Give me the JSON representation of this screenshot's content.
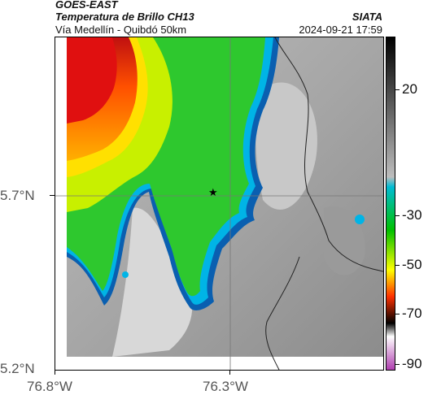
{
  "header": {
    "satellite": "GOES-EAST",
    "product": "Temperatura de Brillo CH13",
    "region": "Vía Medellín - Quibdó 50km",
    "org": "SIATA",
    "timestamp": "2024-09-21 17:59"
  },
  "axes": {
    "lat_labels": [
      "5.7°N",
      "5.2°N"
    ],
    "lon_labels": [
      "76.8°W",
      "76.3°W"
    ]
  },
  "colorbar": {
    "labels": [
      "20",
      "-30",
      "-50",
      "-70",
      "-90"
    ],
    "colors": [
      "#000000",
      "#bdbdbd",
      "#00bcd4",
      "#00c000",
      "#ffff00",
      "#ff3000",
      "#000000",
      "#ffffff",
      "#b040b0"
    ]
  },
  "marker": {
    "icon": "star-icon"
  }
}
